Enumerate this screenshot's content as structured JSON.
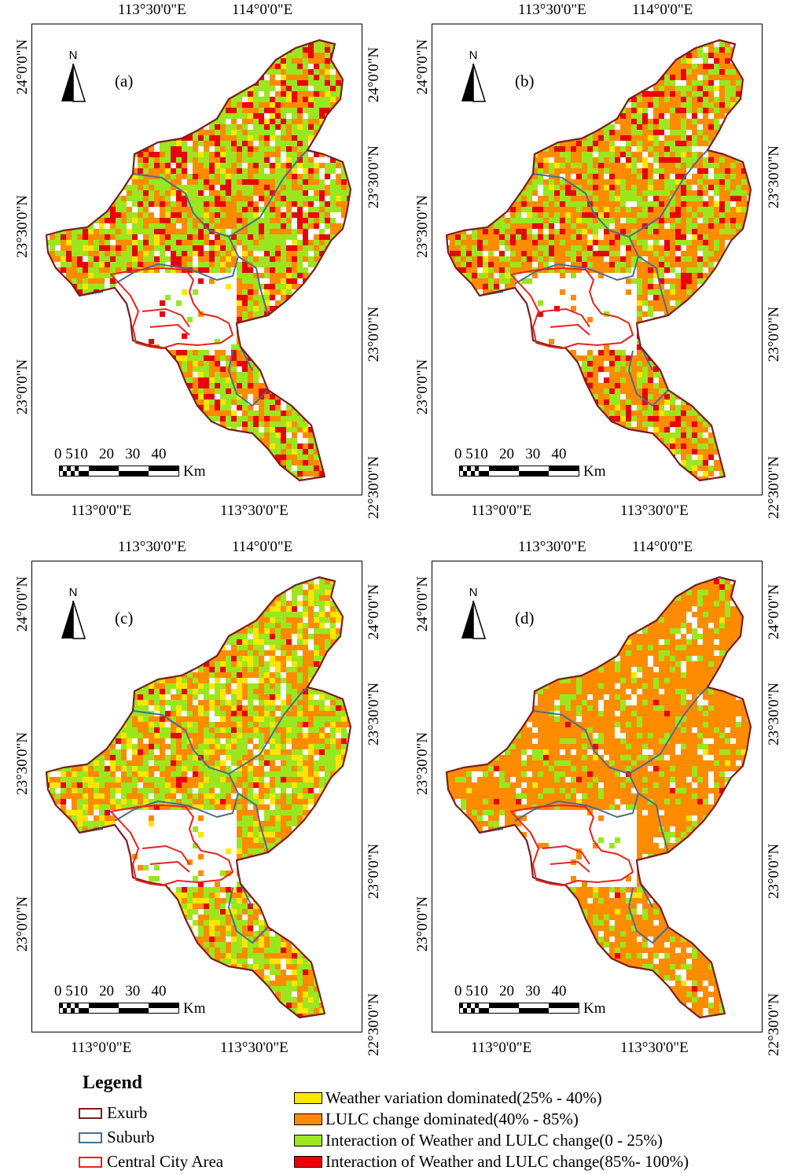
{
  "panels": [
    {
      "tag": "(a)",
      "top_lon": [
        "113°30'0\"E",
        "114°0'0\"E"
      ],
      "bottom_lon": [
        "113°0'0\"E",
        "113°30'0\"E"
      ],
      "left_lat": [
        "24°0'0\"N",
        "23°30'0\"N",
        "23°0'0\"N"
      ],
      "right_lat": [
        "24°0'0\"N",
        "23°30'0\"N",
        "23°0'0\"N",
        "22°30'0\"N"
      ],
      "class_mix": {
        "weather": 0.06,
        "lulc": 0.3,
        "interaction_low": 0.45,
        "interaction_high": 0.19
      }
    },
    {
      "tag": "(b)",
      "top_lon": [
        "113°30'0\"E",
        "114°0'0\"E"
      ],
      "bottom_lon": [
        "113°0'0\"E",
        "113°30'0\"E"
      ],
      "left_lat": [
        "24°0'0\"N",
        "23°30'0\"N",
        "23°0'0\"N"
      ],
      "right_lat": [
        "23°30'0\"N",
        "23°0'0\"N",
        "22°30'0\"N"
      ],
      "class_mix": {
        "weather": 0.03,
        "lulc": 0.52,
        "interaction_low": 0.3,
        "interaction_high": 0.15
      }
    },
    {
      "tag": "(c)",
      "top_lon": [
        "113°30'0\"E",
        "114°0'0\"E"
      ],
      "bottom_lon": [
        "113°0'0\"E",
        "113°30'0\"E"
      ],
      "left_lat": [
        "24°0'0\"N",
        "23°30'0\"N",
        "23°0'0\"N"
      ],
      "right_lat": [
        "24°0'0\"N",
        "23°30'0\"N",
        "23°0'0\"N",
        "22°30'0\"N"
      ],
      "class_mix": {
        "weather": 0.16,
        "lulc": 0.38,
        "interaction_low": 0.42,
        "interaction_high": 0.04
      }
    },
    {
      "tag": "(d)",
      "top_lon": [
        "113°30'0\"E",
        "114°0'0\"E"
      ],
      "bottom_lon": [
        "113°0'0\"E",
        "113°30'0\"E"
      ],
      "left_lat": [
        "24°0'0\"N",
        "23°30'0\"N",
        "23°0'0\"N"
      ],
      "right_lat": [
        "24°0'0\"N",
        "23°30'0\"N",
        "23°0'0\"N",
        "22°30'0\"N"
      ],
      "class_mix": {
        "weather": 0.01,
        "lulc": 0.8,
        "interaction_low": 0.18,
        "interaction_high": 0.01
      }
    }
  ],
  "north_label": "N",
  "scale": {
    "numbers": "0 510   20   30   40",
    "unit": "Km"
  },
  "legend": {
    "title": "Legend",
    "boundaries": [
      {
        "label": "Exurb",
        "color": "#7a1e1e"
      },
      {
        "label": "Suburb",
        "color": "#4a6e8c"
      },
      {
        "label": "Central City Area",
        "color": "#e8231c"
      }
    ],
    "classes": [
      {
        "label": "Weather variation dominated(25% - 40%)",
        "color": "#ffe600"
      },
      {
        "label": "LULC change dominated(40% - 85%)",
        "color": "#ff8c00"
      },
      {
        "label": "Interaction of Weather and LULC change(0 - 25%)",
        "color": "#9be61e"
      },
      {
        "label": "Interaction of Weather and LULC change(85%- 100%)",
        "color": "#e8000b"
      }
    ]
  }
}
